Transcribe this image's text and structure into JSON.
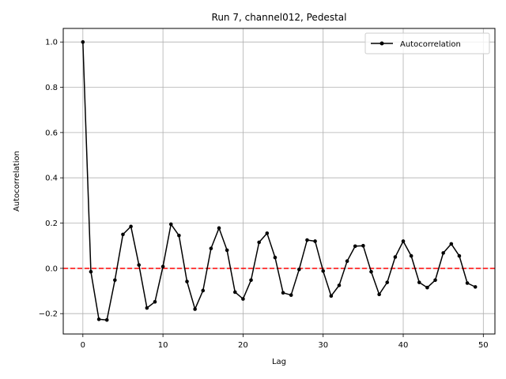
{
  "chart_data": {
    "type": "line",
    "title": "Run 7, channel012, Pedestal",
    "xlabel": "Lag",
    "ylabel": "Autocorrelation",
    "xlim": [
      -2.45,
      51.45
    ],
    "ylim": [
      -0.29,
      1.06
    ],
    "xticks": [
      0,
      10,
      20,
      30,
      40,
      50
    ],
    "yticks": [
      -0.2,
      0.0,
      0.2,
      0.4,
      0.6,
      0.8,
      1.0
    ],
    "grid": true,
    "legend_position": "top-right",
    "reference_line": {
      "y": 0.0,
      "color": "#ff0000",
      "style": "dashed"
    },
    "series": [
      {
        "name": "Autocorrelation",
        "color": "#000000",
        "marker": "circle",
        "x": [
          0,
          1,
          2,
          3,
          4,
          5,
          6,
          7,
          8,
          9,
          10,
          11,
          12,
          13,
          14,
          15,
          16,
          17,
          18,
          19,
          20,
          21,
          22,
          23,
          24,
          25,
          26,
          27,
          28,
          29,
          30,
          31,
          32,
          33,
          34,
          35,
          36,
          37,
          38,
          39,
          40,
          41,
          42,
          43,
          44,
          45,
          46,
          47,
          48,
          49
        ],
        "y": [
          1.0,
          -0.015,
          -0.225,
          -0.228,
          -0.052,
          0.15,
          0.185,
          0.015,
          -0.175,
          -0.148,
          0.008,
          0.195,
          0.145,
          -0.058,
          -0.18,
          -0.098,
          0.088,
          0.178,
          0.08,
          -0.105,
          -0.135,
          -0.052,
          0.115,
          0.155,
          0.048,
          -0.108,
          -0.118,
          -0.005,
          0.125,
          0.12,
          -0.012,
          -0.122,
          -0.075,
          0.032,
          0.098,
          0.1,
          -0.015,
          -0.115,
          -0.062,
          0.05,
          0.12,
          0.055,
          -0.062,
          -0.085,
          -0.052,
          0.068,
          0.108,
          0.055,
          -0.065,
          -0.082
        ]
      }
    ]
  }
}
